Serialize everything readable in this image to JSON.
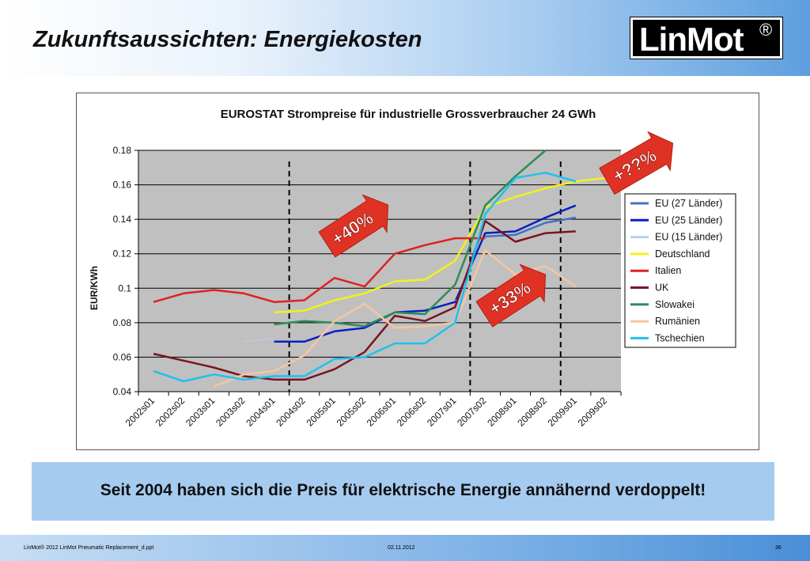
{
  "slide": {
    "title": "Zukunftsaussichten: Energiekosten",
    "logo_text": "LinMot",
    "logo_mark": "®",
    "banner": "Seit 2004 haben sich die Preis für elektrische Energie annähernd verdoppelt!",
    "footer_left": "LinMot® 2012 LinMot Pneumatic Replacement_d.ppt",
    "footer_date": "02.11.2012",
    "footer_page": "36"
  },
  "annotations": [
    {
      "text": "+40%"
    },
    {
      "text": "+33%"
    },
    {
      "text": "+??%"
    }
  ],
  "chart_data": {
    "type": "line",
    "title": "EUROSTAT Strompreise für industrielle Grossverbraucher 24 GWh",
    "ylabel": "EUR/KWh",
    "ylim": [
      0.04,
      0.18
    ],
    "yticks": [
      "0.04",
      "0.06",
      "0.08",
      "0.1",
      "0.12",
      "0.14",
      "0.16",
      "0.18"
    ],
    "categories": [
      "2002s01",
      "2002s02",
      "2003s01",
      "2003s02",
      "2004s01",
      "2004s02",
      "2005s01",
      "2005s02",
      "2006s01",
      "2006s02",
      "2007s01",
      "2007s02",
      "2008s01",
      "2008s02",
      "2009s01",
      "2009s02"
    ],
    "grid": true,
    "legend": "right",
    "marker_lines_after": [
      "2004s01",
      "2007s01",
      "2008s02"
    ],
    "series": [
      {
        "name": "EU (27 Länder)",
        "color": "#4472c4",
        "values": [
          null,
          null,
          null,
          null,
          null,
          null,
          null,
          null,
          null,
          null,
          null,
          0.13,
          0.131,
          0.138,
          0.141,
          null
        ]
      },
      {
        "name": "EU (25 Länder)",
        "color": "#0a1fbf",
        "values": [
          null,
          null,
          null,
          null,
          0.069,
          0.069,
          0.075,
          0.077,
          0.086,
          0.087,
          0.092,
          0.132,
          0.133,
          0.141,
          0.148,
          null
        ]
      },
      {
        "name": "EU (15 Länder)",
        "color": "#b9d2f0",
        "values": [
          null,
          null,
          null,
          0.069,
          0.071,
          null,
          null,
          null,
          null,
          null,
          0.093,
          0.091,
          null,
          null,
          null,
          null
        ]
      },
      {
        "name": "Deutschland",
        "color": "#f2f21a",
        "values": [
          null,
          null,
          null,
          null,
          0.086,
          0.087,
          0.093,
          0.097,
          0.104,
          0.105,
          0.116,
          0.147,
          0.153,
          0.158,
          0.162,
          0.164
        ]
      },
      {
        "name": "Italien",
        "color": "#dd2222",
        "values": [
          0.092,
          0.097,
          0.099,
          0.097,
          0.092,
          0.093,
          0.106,
          0.101,
          0.12,
          0.125,
          0.129,
          0.129,
          null,
          null,
          null,
          null
        ]
      },
      {
        "name": "UK",
        "color": "#7a1420",
        "values": [
          0.062,
          0.058,
          0.054,
          0.049,
          0.047,
          0.047,
          0.053,
          0.063,
          0.084,
          0.081,
          0.089,
          0.139,
          0.127,
          0.132,
          0.133,
          null
        ]
      },
      {
        "name": "Slowakei",
        "color": "#2e8b57",
        "values": [
          null,
          null,
          null,
          null,
          0.079,
          0.081,
          0.08,
          0.078,
          0.086,
          0.085,
          0.102,
          0.148,
          0.165,
          0.18,
          null,
          null
        ]
      },
      {
        "name": "Rumänien",
        "color": "#f5c6a0",
        "values": [
          null,
          null,
          0.043,
          0.05,
          0.052,
          0.061,
          0.081,
          0.091,
          0.077,
          0.078,
          0.08,
          0.122,
          0.108,
          0.113,
          0.101,
          null
        ]
      },
      {
        "name": "Tschechien",
        "color": "#1ec1ee",
        "values": [
          0.052,
          0.046,
          0.05,
          0.047,
          0.049,
          0.049,
          0.059,
          0.06,
          0.068,
          0.068,
          0.08,
          0.143,
          0.164,
          0.167,
          0.162,
          null
        ]
      }
    ]
  }
}
